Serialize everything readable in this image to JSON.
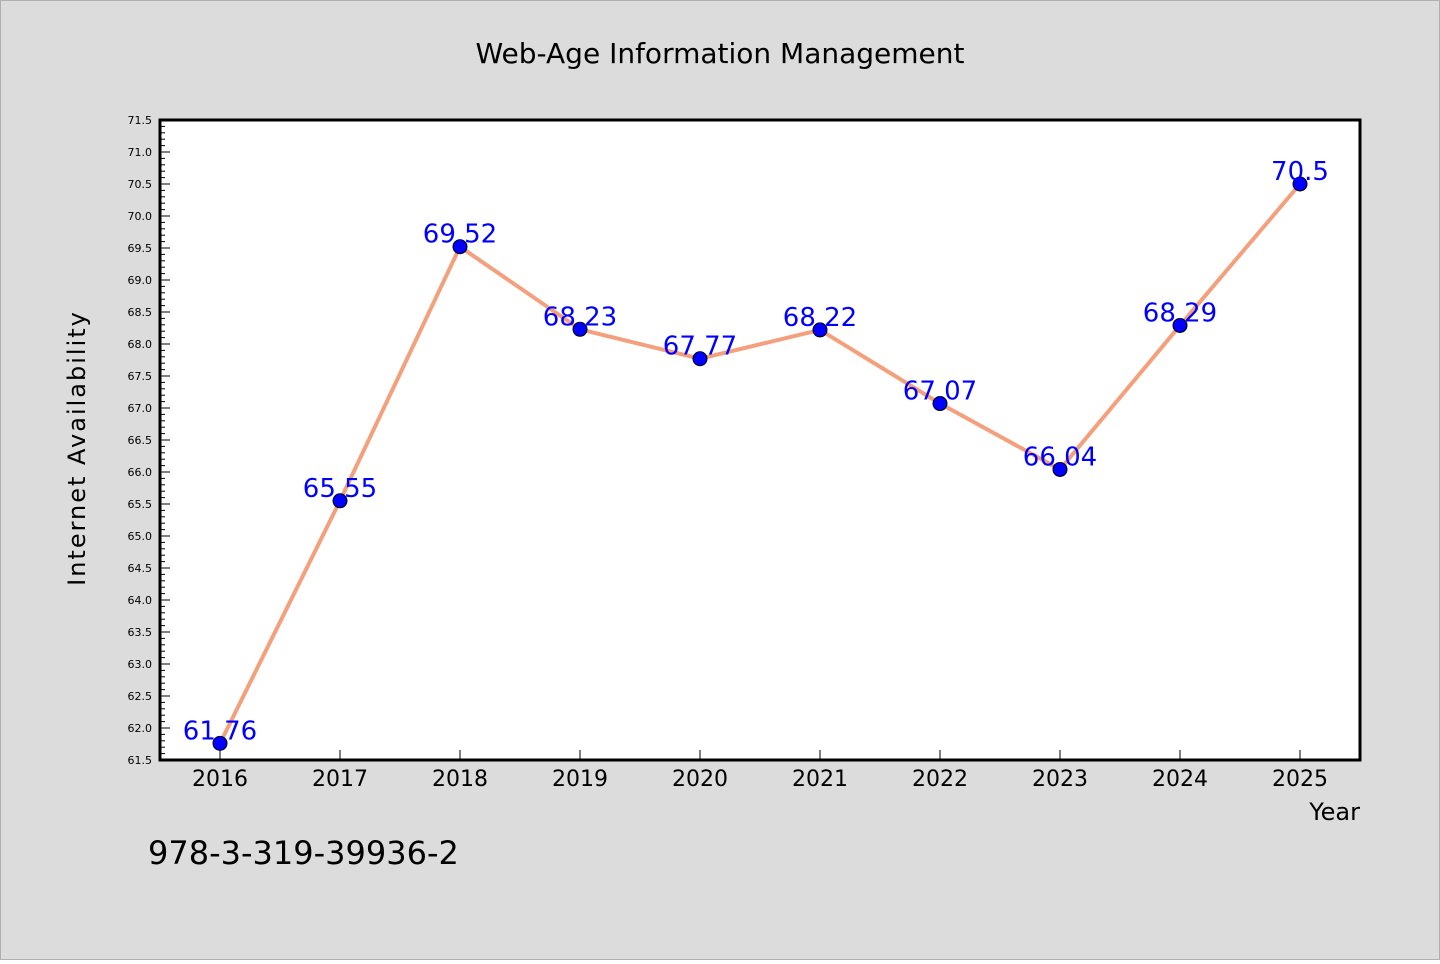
{
  "title": "Web-Age Information Management",
  "footer_text": "978-3-319-39936-2",
  "colors": {
    "figure_background": "#dcdcdc",
    "plot_background": "#ffffff",
    "line": "#f4a07c",
    "marker": "#0000ff",
    "data_label": "#0000ff",
    "text": "#000000"
  },
  "chart_data": {
    "type": "line",
    "title": "Web-Age Information Management",
    "xlabel": "Year",
    "ylabel": "Internet Availability",
    "categories": [
      "2016",
      "2017",
      "2018",
      "2019",
      "2020",
      "2021",
      "2022",
      "2023",
      "2024",
      "2025"
    ],
    "values": [
      61.76,
      65.55,
      69.52,
      68.23,
      67.77,
      68.22,
      67.07,
      66.04,
      68.29,
      70.5
    ],
    "data_labels": [
      "61.76",
      "65.55",
      "69.52",
      "68.23",
      "67.77",
      "68.22",
      "67.07",
      "66.04",
      "68.29",
      "70.5"
    ],
    "ylim": [
      61.5,
      71.5
    ],
    "yticks": [
      "61.5",
      "62.0",
      "62.5",
      "63.0",
      "63.5",
      "64.0",
      "64.5",
      "65.0",
      "65.5",
      "66.0",
      "66.5",
      "67.0",
      "67.5",
      "68.0",
      "68.5",
      "69.0",
      "69.5",
      "70.0",
      "70.5",
      "71.0",
      "71.5"
    ],
    "grid": false,
    "legend": "none",
    "marker": "circle"
  }
}
